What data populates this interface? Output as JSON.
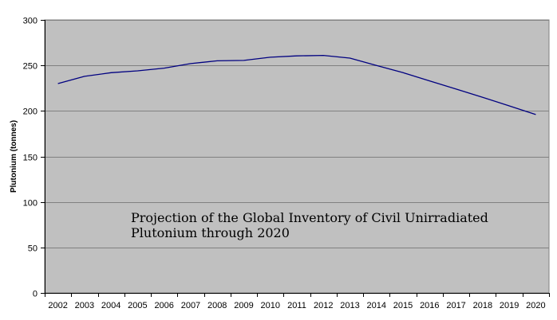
{
  "chart_data": {
    "type": "line",
    "title_lines": [
      "Projection of the Global Inventory of Civil Unirradiated",
      "Plutonium through 2020"
    ],
    "xlabel": "",
    "ylabel": "Plutonium (tonnes)",
    "x": [
      "2002",
      "2003",
      "2004",
      "2005",
      "2006",
      "2007",
      "2008",
      "2009",
      "2010",
      "2011",
      "2012",
      "2013",
      "2014",
      "2015",
      "2016",
      "2017",
      "2018",
      "2019",
      "2020"
    ],
    "series": [
      {
        "name": "",
        "values": [
          230,
          238,
          242,
          244,
          247,
          252,
          255,
          255.5,
          259,
          260.5,
          261,
          258,
          250,
          242,
          233,
          224,
          215,
          205.5,
          196
        ]
      }
    ],
    "ylim": [
      0,
      300
    ],
    "yticks": [
      0,
      50,
      100,
      150,
      200,
      250,
      300
    ],
    "grid": true,
    "legend": "none",
    "colors": {
      "plot_background": "#c0c0c0",
      "line": "#000080",
      "grid": "#808080",
      "axis": "#000000"
    }
  }
}
